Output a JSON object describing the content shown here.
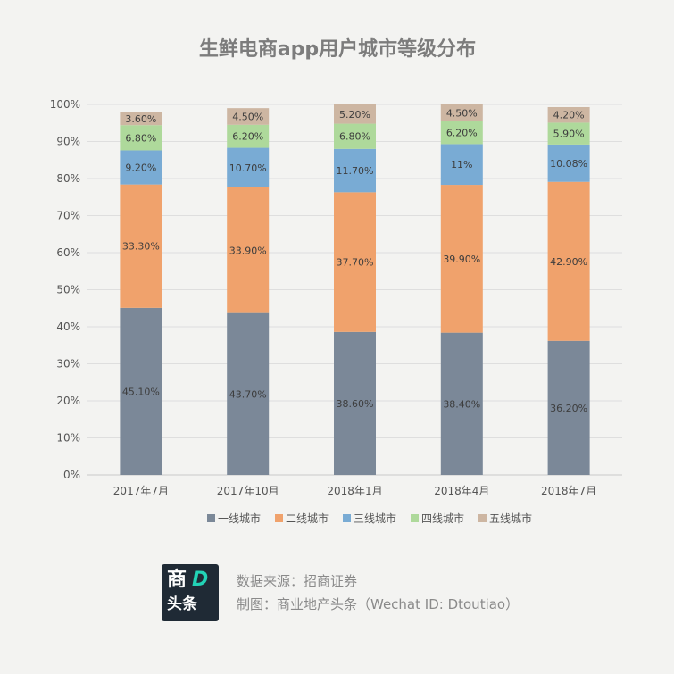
{
  "chart_data": {
    "type": "bar",
    "stacked": true,
    "title": "生鲜电商app用户城市等级分布",
    "categories": [
      "2017年7月",
      "2017年10月",
      "2018年1月",
      "2018年4月",
      "2018年7月"
    ],
    "series": [
      {
        "name": "一线城市",
        "color": "#7b8898",
        "values": [
          45.1,
          43.7,
          38.6,
          38.4,
          36.2
        ],
        "labels": [
          "45.10%",
          "43.70%",
          "38.60%",
          "38.40%",
          "36.20%"
        ]
      },
      {
        "name": "二线城市",
        "color": "#f0a26c",
        "values": [
          33.3,
          33.9,
          37.7,
          39.9,
          42.9
        ],
        "labels": [
          "33.30%",
          "33.90%",
          "37.70%",
          "39.90%",
          "42.90%"
        ]
      },
      {
        "name": "三线城市",
        "color": "#79abd4",
        "values": [
          9.2,
          10.7,
          11.7,
          11,
          10.08
        ],
        "labels": [
          "9.20%",
          "10.70%",
          "11.70%",
          "11%",
          "10.08%"
        ]
      },
      {
        "name": "四线城市",
        "color": "#aed99b",
        "values": [
          6.8,
          6.2,
          6.8,
          6.2,
          5.9
        ],
        "labels": [
          "6.80%",
          "6.20%",
          "6.80%",
          "6.20%",
          "5.90%"
        ]
      },
      {
        "name": "五线城市",
        "color": "#cdb6a2",
        "values": [
          3.6,
          4.5,
          5.2,
          4.5,
          4.2
        ],
        "labels": [
          "3.60%",
          "4.50%",
          "5.20%",
          "4.50%",
          "4.20%"
        ]
      }
    ],
    "ylim": [
      0,
      100
    ],
    "yticks": [
      "0%",
      "10%",
      "20%",
      "30%",
      "40%",
      "50%",
      "60%",
      "70%",
      "80%",
      "90%",
      "100%"
    ],
    "grid": true,
    "legend": "bottom"
  },
  "footer": {
    "logo_top": "商",
    "logo_d": "D",
    "logo_bottom": "头条",
    "source_line": "数据来源：招商证券",
    "credit_line": "制图：商业地产头条（Wechat ID: Dtoutiao）"
  }
}
